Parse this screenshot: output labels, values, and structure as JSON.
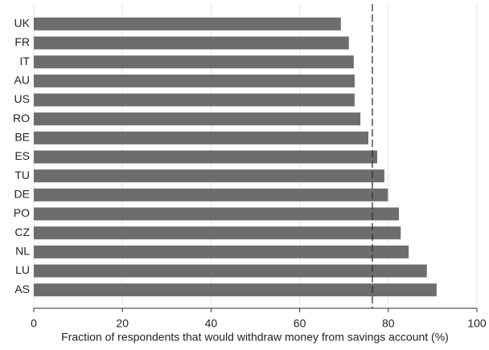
{
  "chart_data": {
    "type": "barh",
    "x_label": "Fraction of respondents that would withdraw money from savings account (%)",
    "categories": [
      "UK",
      "FR",
      "IT",
      "AU",
      "US",
      "RO",
      "BE",
      "ES",
      "TU",
      "DE",
      "PO",
      "CZ",
      "NL",
      "LU",
      "AS"
    ],
    "values": [
      69.3,
      71.1,
      72.2,
      72.4,
      72.4,
      73.7,
      75.5,
      77.5,
      79.1,
      79.9,
      82.4,
      82.8,
      84.6,
      88.7,
      90.9
    ],
    "color": "#6d6d6d",
    "xlim": [
      0,
      100
    ],
    "xticks": [
      0,
      20,
      40,
      60,
      80,
      100
    ],
    "grid": true,
    "reference_line": 76.4
  }
}
